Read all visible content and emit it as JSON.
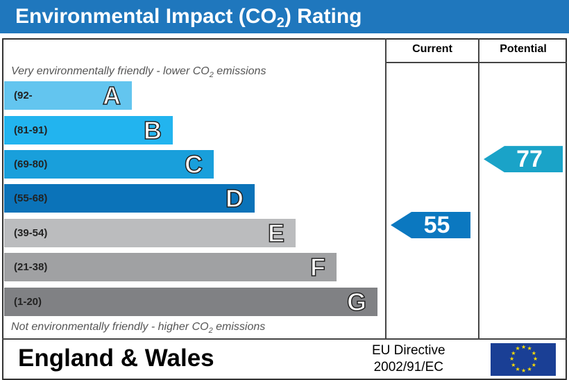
{
  "header": {
    "title_prefix": "Environmental Impact (CO",
    "title_sub": "2",
    "title_suffix": ") Rating"
  },
  "columns": {
    "current": "Current",
    "potential": "Potential"
  },
  "notes": {
    "top_prefix": "Very environmentally friendly - lower CO",
    "top_sub": "2",
    "top_suffix": " emissions",
    "bottom_prefix": "Not environmentally friendly - higher CO",
    "bottom_sub": "2",
    "bottom_suffix": " emissions"
  },
  "chart_data": {
    "type": "bar",
    "bands": [
      {
        "letter": "A",
        "range": "(92-",
        "color": "#63c5ef"
      },
      {
        "letter": "B",
        "range": "(81-91)",
        "color": "#22b4ef"
      },
      {
        "letter": "C",
        "range": "(69-80)",
        "color": "#199fdb"
      },
      {
        "letter": "D",
        "range": "(55-68)",
        "color": "#0b73b9"
      },
      {
        "letter": "E",
        "range": "(39-54)",
        "color": "#bbbcbe"
      },
      {
        "letter": "F",
        "range": "(21-38)",
        "color": "#a0a1a3"
      },
      {
        "letter": "G",
        "range": "(1-20)",
        "color": "#808184"
      }
    ],
    "current": {
      "value": "55",
      "band": "D",
      "color": "#0b78c0"
    },
    "potential": {
      "value": "77",
      "band": "C",
      "color": "#1aa3c8"
    }
  },
  "footer": {
    "region": "England & Wales",
    "directive_line1": "EU Directive",
    "directive_line2": "2002/91/EC"
  }
}
